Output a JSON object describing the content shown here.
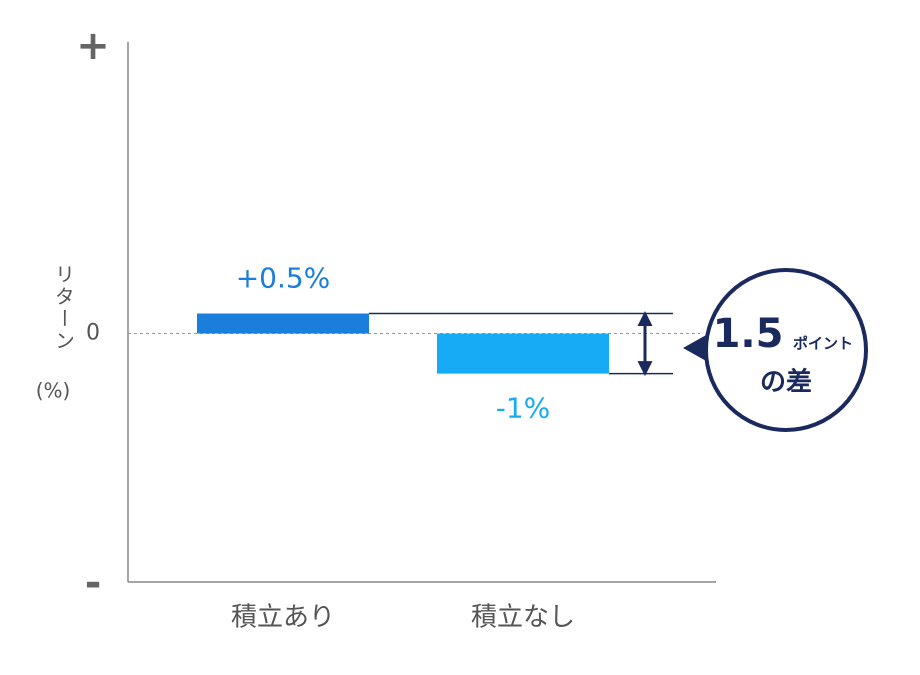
{
  "chart_data": {
    "type": "bar",
    "ylabel": {
      "text": "リターン",
      "unit": "(%)"
    },
    "categories": [
      "積立あり",
      "積立なし"
    ],
    "values": [
      0.5,
      -1
    ],
    "value_labels": [
      "+0.5%",
      "-1%"
    ],
    "colors": [
      "#1a7fdc",
      "#17aaf5"
    ],
    "ylim": [
      -6.2,
      7.2
    ],
    "yticks": [
      {
        "value": 7.2,
        "label": "+"
      },
      0,
      {
        "value": -6.2,
        "label": "-"
      }
    ],
    "annotation": {
      "value": "1.5",
      "unit": "ポイント",
      "suffix": "の差"
    }
  }
}
